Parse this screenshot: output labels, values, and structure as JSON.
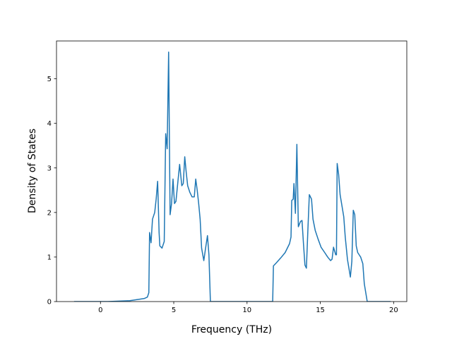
{
  "chart_data": {
    "type": "line",
    "title": "",
    "xlabel": "Frequency (THz)",
    "ylabel": "Density of States",
    "xlim": [
      -3.0,
      20.9
    ],
    "ylim": [
      0,
      5.85
    ],
    "x_ticks": [
      0,
      5,
      10,
      15,
      20
    ],
    "x_tick_labels": [
      "0",
      "5",
      "10",
      "15",
      "20"
    ],
    "y_ticks": [
      0,
      1,
      2,
      3,
      4,
      5
    ],
    "y_tick_labels": [
      "0",
      "1",
      "2",
      "3",
      "4",
      "5"
    ],
    "grid": false,
    "legend": "none",
    "series": [
      {
        "color": "#1f77b4",
        "points": [
          [
            -1.8,
            0.0
          ],
          [
            0.5,
            0.0
          ],
          [
            2.0,
            0.02
          ],
          [
            3.0,
            0.07
          ],
          [
            3.2,
            0.1
          ],
          [
            3.3,
            0.2
          ],
          [
            3.35,
            1.55
          ],
          [
            3.45,
            1.32
          ],
          [
            3.55,
            1.85
          ],
          [
            3.7,
            2.0
          ],
          [
            3.8,
            2.3
          ],
          [
            3.9,
            2.7
          ],
          [
            4.0,
            1.55
          ],
          [
            4.05,
            1.25
          ],
          [
            4.2,
            1.2
          ],
          [
            4.35,
            1.35
          ],
          [
            4.45,
            3.77
          ],
          [
            4.55,
            3.43
          ],
          [
            4.65,
            5.6
          ],
          [
            4.75,
            1.95
          ],
          [
            4.85,
            2.2
          ],
          [
            4.95,
            2.75
          ],
          [
            5.05,
            2.2
          ],
          [
            5.15,
            2.25
          ],
          [
            5.3,
            2.75
          ],
          [
            5.4,
            3.08
          ],
          [
            5.55,
            2.6
          ],
          [
            5.65,
            2.65
          ],
          [
            5.75,
            3.25
          ],
          [
            5.85,
            2.9
          ],
          [
            5.95,
            2.6
          ],
          [
            6.1,
            2.45
          ],
          [
            6.25,
            2.35
          ],
          [
            6.4,
            2.35
          ],
          [
            6.5,
            2.75
          ],
          [
            6.6,
            2.5
          ],
          [
            6.7,
            2.2
          ],
          [
            6.8,
            1.85
          ],
          [
            6.9,
            1.2
          ],
          [
            7.05,
            0.92
          ],
          [
            7.15,
            1.15
          ],
          [
            7.3,
            1.48
          ],
          [
            7.4,
            1.05
          ],
          [
            7.5,
            0.0
          ],
          [
            11.0,
            0.0
          ],
          [
            11.75,
            0.0
          ],
          [
            11.8,
            0.8
          ],
          [
            12.0,
            0.87
          ],
          [
            12.3,
            0.98
          ],
          [
            12.6,
            1.1
          ],
          [
            12.9,
            1.3
          ],
          [
            13.0,
            1.45
          ],
          [
            13.05,
            2.27
          ],
          [
            13.15,
            2.3
          ],
          [
            13.2,
            2.65
          ],
          [
            13.3,
            1.98
          ],
          [
            13.4,
            3.53
          ],
          [
            13.5,
            1.68
          ],
          [
            13.65,
            1.8
          ],
          [
            13.75,
            1.82
          ],
          [
            13.85,
            1.3
          ],
          [
            13.95,
            0.82
          ],
          [
            14.05,
            0.75
          ],
          [
            14.15,
            1.6
          ],
          [
            14.25,
            2.4
          ],
          [
            14.4,
            2.3
          ],
          [
            14.5,
            1.85
          ],
          [
            14.65,
            1.6
          ],
          [
            14.85,
            1.4
          ],
          [
            15.05,
            1.22
          ],
          [
            15.3,
            1.1
          ],
          [
            15.5,
            1.0
          ],
          [
            15.7,
            0.92
          ],
          [
            15.8,
            0.95
          ],
          [
            15.9,
            1.22
          ],
          [
            16.05,
            1.05
          ],
          [
            16.1,
            1.05
          ],
          [
            16.15,
            3.1
          ],
          [
            16.25,
            2.85
          ],
          [
            16.35,
            2.4
          ],
          [
            16.5,
            2.1
          ],
          [
            16.6,
            1.9
          ],
          [
            16.7,
            1.45
          ],
          [
            16.85,
            0.95
          ],
          [
            16.95,
            0.75
          ],
          [
            17.05,
            0.55
          ],
          [
            17.15,
            0.9
          ],
          [
            17.25,
            2.05
          ],
          [
            17.35,
            1.95
          ],
          [
            17.45,
            1.25
          ],
          [
            17.55,
            1.1
          ],
          [
            17.75,
            1.0
          ],
          [
            17.9,
            0.85
          ],
          [
            18.0,
            0.4
          ],
          [
            18.1,
            0.2
          ],
          [
            18.2,
            0.0
          ],
          [
            19.8,
            0.0
          ]
        ]
      }
    ]
  }
}
